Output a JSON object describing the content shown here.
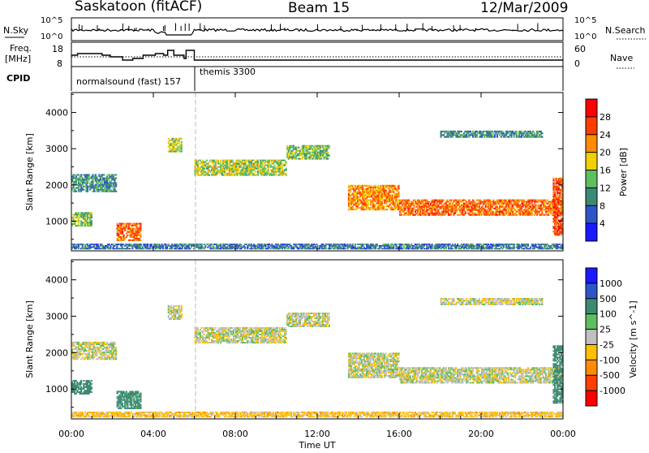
{
  "header": {
    "station": "Saskatoon (fitACF)",
    "beam": "Beam 15",
    "date": "12/Mar/2009"
  },
  "status_panel": {
    "nsky_label": "N.Sky",
    "nsearch_label": "N.Search",
    "freq_label_line1": "Freq.",
    "freq_label_line2": "[MHz]",
    "nave_label": "Nave",
    "cpid_label": "CPID",
    "nsky_ticks": [
      "10^5",
      "10^0"
    ],
    "nsearch_ticks": [
      "10^5",
      "10^0"
    ],
    "freq_ticks": [
      "18",
      "8"
    ],
    "nave_ticks": [
      "60",
      "0"
    ],
    "cpid_segments": [
      {
        "name": "normalsound (fast) 157",
        "start_hour": 0,
        "end_hour": 6
      },
      {
        "name": "themis 3300",
        "start_hour": 6,
        "end_hour": 24
      }
    ],
    "freq_steps": [
      {
        "h": 0.0,
        "f": 14
      },
      {
        "h": 0.3,
        "f": 15
      },
      {
        "h": 1.5,
        "f": 14
      },
      {
        "h": 1.9,
        "f": 13
      },
      {
        "h": 2.5,
        "f": 11
      },
      {
        "h": 3.0,
        "f": 12
      },
      {
        "h": 3.5,
        "f": 14
      },
      {
        "h": 4.1,
        "f": 15
      },
      {
        "h": 4.5,
        "f": 14
      },
      {
        "h": 4.7,
        "f": 17
      },
      {
        "h": 5.0,
        "f": 14
      },
      {
        "h": 5.5,
        "f": 12
      },
      {
        "h": 5.6,
        "f": 17
      },
      {
        "h": 6.0,
        "f": 11
      },
      {
        "h": 24.0,
        "f": 11
      }
    ]
  },
  "chart_data": [
    {
      "type": "heatmap",
      "quantity": "power",
      "ylabel": "Slant Range [km]",
      "ylim": [
        180,
        4550
      ],
      "yticks": [
        1000,
        2000,
        3000,
        4000
      ],
      "xlim": [
        0,
        24
      ],
      "colorbar_label": "Power [dB]",
      "colorbar_ticks": [
        "4",
        "8",
        "12",
        "16",
        "20",
        "24",
        "28"
      ],
      "colorbar_colors": [
        "#1a1aff",
        "#2d57c8",
        "#3c8a73",
        "#5fbf5f",
        "#f0d000",
        "#ff8c00",
        "#ff3c00",
        "#ff0000"
      ],
      "echo_regions": [
        {
          "h0": 0.0,
          "h1": 1.0,
          "r0": 850,
          "r1": 1250,
          "v": 16
        },
        {
          "h0": 0.0,
          "h1": 2.2,
          "r0": 1800,
          "r1": 2300,
          "v": 12
        },
        {
          "h0": 2.2,
          "h1": 3.4,
          "r0": 450,
          "r1": 950,
          "v": 26
        },
        {
          "h0": 4.7,
          "h1": 5.4,
          "r0": 2900,
          "r1": 3300,
          "v": 18
        },
        {
          "h0": 6.0,
          "h1": 10.5,
          "r0": 2250,
          "r1": 2700,
          "v": 18
        },
        {
          "h0": 10.5,
          "h1": 12.6,
          "r0": 2700,
          "r1": 3100,
          "v": 16
        },
        {
          "h0": 13.5,
          "h1": 16.0,
          "r0": 1300,
          "r1": 2000,
          "v": 24
        },
        {
          "h0": 16.0,
          "h1": 24.0,
          "r0": 1150,
          "r1": 1600,
          "v": 26
        },
        {
          "h0": 18.0,
          "h1": 23.0,
          "r0": 3300,
          "r1": 3500,
          "v": 12
        },
        {
          "h0": 23.5,
          "h1": 24.0,
          "r0": 600,
          "r1": 2200,
          "v": 28
        },
        {
          "h0": 0.0,
          "h1": 24.0,
          "r0": 220,
          "r1": 380,
          "v": 10
        }
      ]
    },
    {
      "type": "heatmap",
      "quantity": "velocity",
      "ylabel": "Slant Range [km]",
      "ylim": [
        180,
        4550
      ],
      "yticks": [
        1000,
        2000,
        3000,
        4000
      ],
      "xlim": [
        0,
        24
      ],
      "xlabel": "Time UT",
      "xticks": [
        "00:00",
        "04:00",
        "08:00",
        "12:00",
        "16:00",
        "20:00",
        "00:00"
      ],
      "colorbar_label": "Velocity [m s^-1]",
      "colorbar_ticks": [
        "1000",
        "500",
        "100",
        "25",
        "-25",
        "-100",
        "-500",
        "-1000"
      ],
      "colorbar_colors": [
        "#1a1aff",
        "#2d57c8",
        "#3c8a73",
        "#5fbf5f",
        "#c0c0c0",
        "#ffc000",
        "#ff8c00",
        "#ff4000",
        "#ff0000"
      ],
      "echo_regions": [
        {
          "h0": 0.0,
          "h1": 1.0,
          "r0": 850,
          "r1": 1250,
          "v": 200
        },
        {
          "h0": 0.0,
          "h1": 2.2,
          "r0": 1800,
          "r1": 2300,
          "v": 0
        },
        {
          "h0": 2.2,
          "h1": 3.4,
          "r0": 450,
          "r1": 950,
          "v": 150
        },
        {
          "h0": 4.7,
          "h1": 5.4,
          "r0": 2900,
          "r1": 3300,
          "v": 0
        },
        {
          "h0": 6.0,
          "h1": 10.5,
          "r0": 2250,
          "r1": 2700,
          "v": 0
        },
        {
          "h0": 10.5,
          "h1": 12.6,
          "r0": 2700,
          "r1": 3100,
          "v": 0
        },
        {
          "h0": 13.5,
          "h1": 16.0,
          "r0": 1300,
          "r1": 2000,
          "v": 0
        },
        {
          "h0": 16.0,
          "h1": 24.0,
          "r0": 1150,
          "r1": 1600,
          "v": 0
        },
        {
          "h0": 18.0,
          "h1": 23.0,
          "r0": 3300,
          "r1": 3500,
          "v": 0
        },
        {
          "h0": 23.5,
          "h1": 24.0,
          "r0": 600,
          "r1": 2200,
          "v": 300
        },
        {
          "h0": 0.0,
          "h1": 24.0,
          "r0": 220,
          "r1": 380,
          "v": -60
        }
      ]
    }
  ]
}
